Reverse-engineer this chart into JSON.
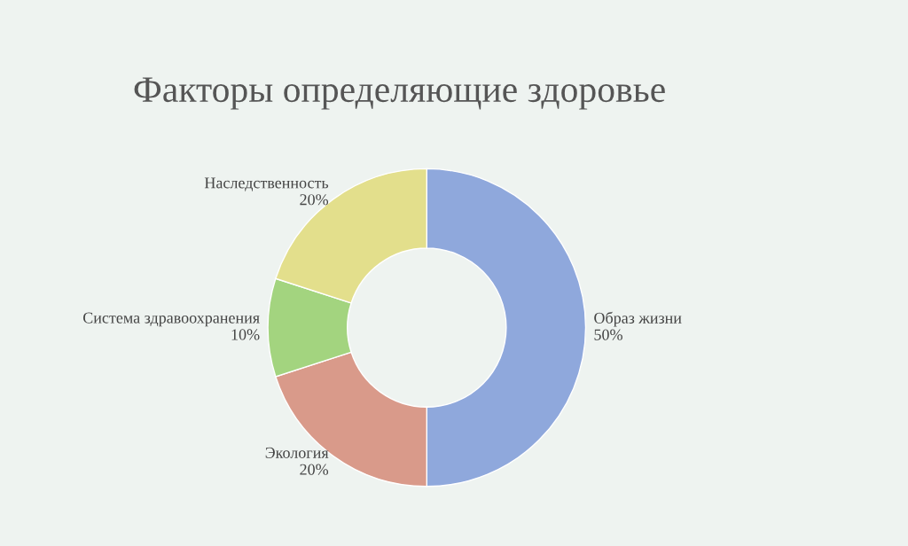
{
  "chart_data": {
    "type": "donut",
    "title": "Факторы определяющие здоровье",
    "categories": [
      "Образ жизни",
      "Экология",
      "Система здравоохранения",
      "Наследственность"
    ],
    "values": [
      50,
      20,
      10,
      20
    ],
    "value_labels": [
      "50%",
      "20%",
      "10%",
      "20%"
    ],
    "colors": [
      "#8fa8dc",
      "#d99a8a",
      "#a3d47f",
      "#e3df8c"
    ],
    "legend": false
  }
}
